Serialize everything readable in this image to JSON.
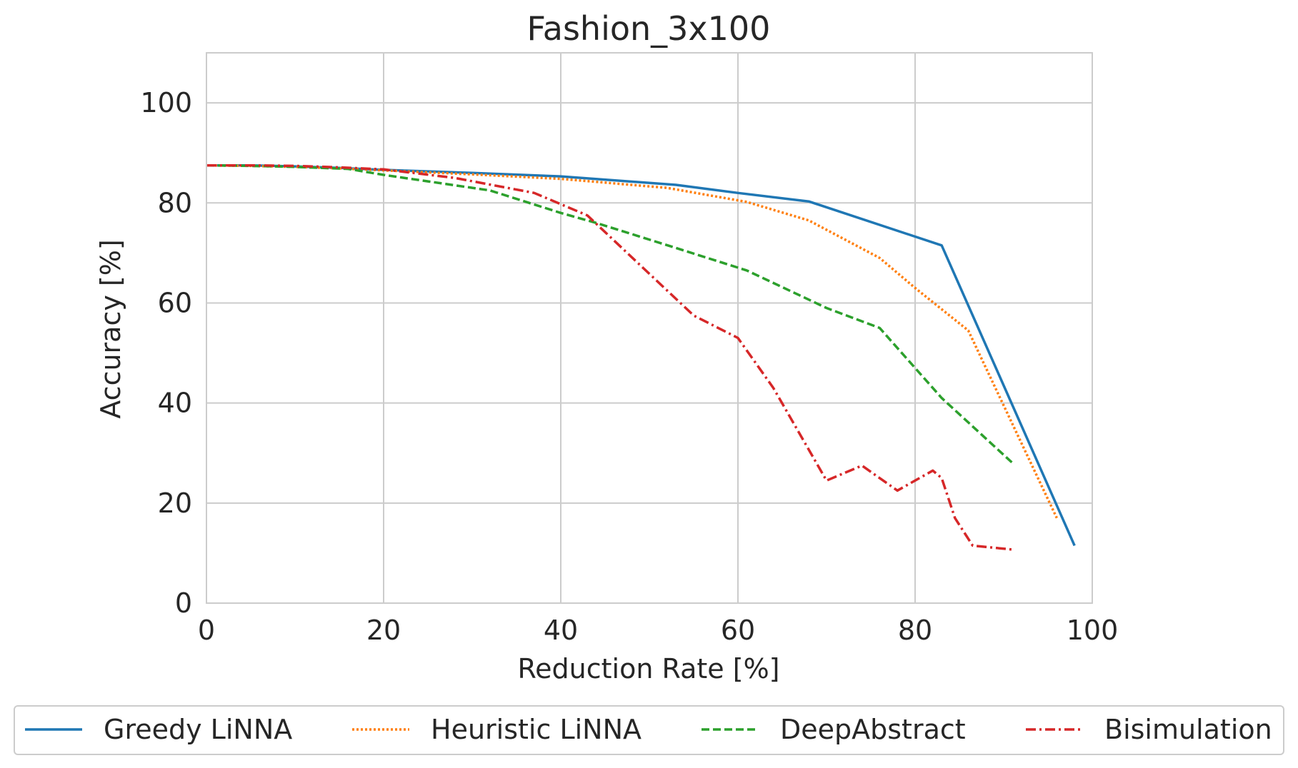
{
  "chart_data": {
    "type": "line",
    "title": "Fashion_3x100",
    "xlabel": "Reduction Rate [%]",
    "ylabel": "Accuracy [%]",
    "xlim": [
      0,
      100
    ],
    "ylim": [
      0,
      110
    ],
    "xticks": [
      0,
      20,
      40,
      60,
      80,
      100
    ],
    "yticks": [
      0,
      20,
      40,
      60,
      80,
      100
    ],
    "grid": true,
    "legend_position": "bottom",
    "series": [
      {
        "name": "Greedy LiNNA",
        "color": "#1f77b4",
        "style": "solid",
        "x": [
          0,
          5,
          10,
          15,
          20,
          30,
          40,
          53,
          60,
          68,
          83,
          98
        ],
        "y": [
          87.5,
          87.5,
          87.3,
          87.0,
          86.6,
          86.0,
          85.3,
          83.6,
          82.0,
          80.3,
          71.5,
          11.5
        ]
      },
      {
        "name": "Heuristic LiNNA",
        "color": "#ff7f0e",
        "style": "dotted",
        "x": [
          0,
          5,
          10,
          15,
          20,
          30,
          40,
          52,
          61,
          68,
          76,
          80,
          86,
          96
        ],
        "y": [
          87.5,
          87.4,
          87.2,
          86.9,
          86.5,
          85.7,
          84.8,
          83.0,
          80.2,
          76.5,
          69.0,
          63.0,
          54.5,
          17.0
        ]
      },
      {
        "name": "DeepAbstract",
        "color": "#2ca02c",
        "style": "dashed",
        "x": [
          0,
          5,
          10,
          16,
          20,
          32,
          40,
          44,
          53,
          61,
          70,
          76,
          83,
          91
        ],
        "y": [
          87.5,
          87.4,
          87.2,
          86.8,
          85.6,
          82.5,
          78.0,
          76.0,
          71.0,
          66.5,
          59.0,
          55.0,
          41.0,
          28.0
        ]
      },
      {
        "name": "Bisimulation",
        "color": "#d62728",
        "style": "dashdot",
        "x": [
          0,
          5,
          10,
          15,
          20,
          28,
          37,
          43,
          49,
          55,
          60,
          64,
          70,
          74,
          78,
          82,
          83,
          84.5,
          86.5,
          91
        ],
        "y": [
          87.5,
          87.5,
          87.4,
          87.1,
          86.7,
          85.0,
          82.0,
          77.5,
          67.5,
          57.5,
          53.0,
          43.0,
          24.5,
          27.5,
          22.5,
          26.5,
          25.0,
          17.0,
          11.5,
          10.7
        ]
      }
    ]
  }
}
